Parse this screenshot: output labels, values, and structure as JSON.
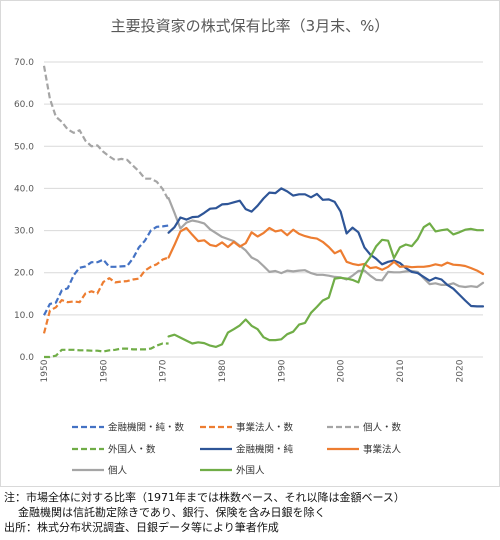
{
  "chart_data": {
    "type": "line",
    "title": "主要投資家の株式保有比率（3月末、%）",
    "xlim": [
      1950,
      2024
    ],
    "ylim": [
      0,
      70
    ],
    "yticks": [
      "0.0",
      "10.0",
      "20.0",
      "30.0",
      "40.0",
      "50.0",
      "60.0",
      "70.0"
    ],
    "xticks": [
      "1950",
      "1960",
      "1970",
      "1980",
      "1990",
      "2000",
      "2010",
      "2020"
    ],
    "grid": "horizontal",
    "legend_position": "bottom",
    "series": [
      {
        "name": "金融機関・純・数",
        "color": "#4472c4",
        "dash": true,
        "x": [
          1950,
          1951,
          1952,
          1953,
          1954,
          1955,
          1956,
          1957,
          1958,
          1959,
          1960,
          1961,
          1962,
          1963,
          1964,
          1965,
          1966,
          1967,
          1968,
          1969,
          1970,
          1971
        ],
        "y": [
          9.9,
          12.6,
          12.9,
          15.8,
          16.3,
          19.4,
          21.2,
          21.5,
          22.5,
          22.5,
          23.1,
          21.4,
          21.4,
          21.5,
          21.6,
          23.4,
          26.0,
          27.6,
          30.0,
          30.9,
          31.0,
          31.2
        ]
      },
      {
        "name": "事業法人・数",
        "color": "#ed7d31",
        "dash": true,
        "x": [
          1950,
          1951,
          1952,
          1953,
          1954,
          1955,
          1956,
          1957,
          1958,
          1959,
          1960,
          1961,
          1962,
          1963,
          1964,
          1965,
          1966,
          1967,
          1968,
          1969,
          1970,
          1971
        ],
        "y": [
          5.6,
          11.0,
          11.8,
          13.5,
          13.0,
          13.2,
          13.0,
          15.1,
          15.6,
          15.1,
          17.8,
          18.7,
          17.7,
          17.9,
          18.0,
          18.4,
          18.6,
          20.5,
          21.4,
          22.0,
          23.1,
          23.6
        ]
      },
      {
        "name": "個人・数",
        "color": "#a5a5a5",
        "dash": true,
        "x": [
          1950,
          1951,
          1952,
          1953,
          1954,
          1955,
          1956,
          1957,
          1958,
          1959,
          1960,
          1961,
          1962,
          1963,
          1964,
          1965,
          1966,
          1967,
          1968,
          1969,
          1970,
          1971
        ],
        "y": [
          69.1,
          61.3,
          57.0,
          55.8,
          54.0,
          53.2,
          53.8,
          51.3,
          50.0,
          50.2,
          48.7,
          47.6,
          46.7,
          47.0,
          46.8,
          45.4,
          44.1,
          42.3,
          42.3,
          41.6,
          39.9,
          37.2
        ]
      },
      {
        "name": "外国人・数",
        "color": "#70ad47",
        "dash": true,
        "x": [
          1950,
          1951,
          1952,
          1953,
          1954,
          1955,
          1956,
          1957,
          1958,
          1959,
          1960,
          1961,
          1962,
          1963,
          1964,
          1965,
          1966,
          1967,
          1968,
          1969,
          1970,
          1971
        ],
        "y": [
          0.0,
          0.0,
          0.3,
          1.7,
          1.7,
          1.7,
          1.6,
          1.6,
          1.5,
          1.5,
          1.3,
          1.6,
          1.7,
          2.0,
          2.0,
          1.8,
          1.8,
          1.8,
          2.0,
          2.7,
          3.2,
          3.2
        ]
      },
      {
        "name": "金融機関・純",
        "color": "#2e5597",
        "dash": false,
        "x": [
          1971,
          1972,
          1973,
          1974,
          1975,
          1976,
          1977,
          1978,
          1979,
          1980,
          1981,
          1982,
          1983,
          1984,
          1985,
          1986,
          1987,
          1988,
          1989,
          1990,
          1991,
          1992,
          1993,
          1994,
          1995,
          1996,
          1997,
          1998,
          1999,
          2000,
          2001,
          2002,
          2003,
          2004,
          2005,
          2006,
          2007,
          2008,
          2009,
          2010,
          2011,
          2012,
          2013,
          2014,
          2015,
          2016,
          2017,
          2018,
          2019,
          2020,
          2021,
          2022,
          2023,
          2024
        ],
        "y": [
          29.5,
          30.8,
          33.1,
          32.6,
          33.2,
          33.3,
          34.2,
          35.2,
          35.3,
          36.2,
          36.3,
          36.7,
          37.1,
          35.1,
          34.5,
          35.9,
          37.6,
          39.0,
          38.9,
          40.0,
          39.3,
          38.3,
          38.6,
          38.6,
          37.9,
          38.7,
          37.3,
          37.4,
          36.8,
          34.5,
          29.3,
          30.7,
          29.6,
          26.0,
          24.3,
          23.3,
          22.0,
          22.6,
          22.9,
          22.3,
          21.1,
          20.2,
          19.9,
          19.0,
          18.1,
          18.8,
          18.4,
          17.1,
          16.2,
          14.8,
          13.4,
          12.1,
          12.0,
          12.0
        ]
      },
      {
        "name": "事業法人",
        "color": "#ed7d31",
        "dash": false,
        "x": [
          1971,
          1972,
          1973,
          1974,
          1975,
          1976,
          1977,
          1978,
          1979,
          1980,
          1981,
          1982,
          1983,
          1984,
          1985,
          1986,
          1987,
          1988,
          1989,
          1990,
          1991,
          1992,
          1993,
          1994,
          1995,
          1996,
          1997,
          1998,
          1999,
          2000,
          2001,
          2002,
          2003,
          2004,
          2005,
          2006,
          2007,
          2008,
          2009,
          2010,
          2011,
          2012,
          2013,
          2014,
          2015,
          2016,
          2017,
          2018,
          2019,
          2020,
          2021,
          2022,
          2023,
          2024
        ],
        "y": [
          23.6,
          26.6,
          29.8,
          30.6,
          29.0,
          27.5,
          27.7,
          26.6,
          26.3,
          27.2,
          26.1,
          27.3,
          26.2,
          27.0,
          29.6,
          28.6,
          29.4,
          30.6,
          29.8,
          30.1,
          28.9,
          30.2,
          29.2,
          28.7,
          28.3,
          28.1,
          27.3,
          26.1,
          24.6,
          25.3,
          22.6,
          22.1,
          21.8,
          22.1,
          21.1,
          21.3,
          20.7,
          21.4,
          22.6,
          21.4,
          21.5,
          21.3,
          21.4,
          21.4,
          21.6,
          22.0,
          21.7,
          22.4,
          21.9,
          21.8,
          21.6,
          21.1,
          20.5,
          19.7
        ]
      },
      {
        "name": "個人",
        "color": "#a5a5a5",
        "dash": false,
        "x": [
          1971,
          1972,
          1973,
          1974,
          1975,
          1976,
          1977,
          1978,
          1979,
          1980,
          1981,
          1982,
          1983,
          1984,
          1985,
          1986,
          1987,
          1988,
          1989,
          1990,
          1991,
          1992,
          1993,
          1994,
          1995,
          1996,
          1997,
          1998,
          1999,
          2000,
          2001,
          2002,
          2003,
          2004,
          2005,
          2006,
          2007,
          2008,
          2009,
          2010,
          2011,
          2012,
          2013,
          2014,
          2015,
          2016,
          2017,
          2018,
          2019,
          2020,
          2021,
          2022,
          2023,
          2024
        ],
        "y": [
          37.7,
          34.2,
          30.5,
          31.9,
          32.4,
          32.1,
          31.7,
          30.3,
          29.4,
          28.5,
          28.0,
          27.5,
          26.4,
          25.3,
          23.6,
          22.9,
          21.6,
          20.2,
          20.4,
          19.9,
          20.5,
          20.3,
          20.5,
          20.6,
          19.9,
          19.5,
          19.5,
          19.3,
          19.0,
          18.9,
          18.4,
          19.3,
          20.4,
          20.5,
          19.3,
          18.3,
          18.2,
          20.2,
          20.1,
          20.1,
          20.3,
          20.4,
          20.2,
          18.7,
          17.3,
          17.5,
          17.1,
          17.1,
          17.5,
          16.8,
          16.6,
          16.8,
          16.6,
          17.6
        ]
      },
      {
        "name": "外国人",
        "color": "#70ad47",
        "dash": false,
        "x": [
          1971,
          1972,
          1973,
          1974,
          1975,
          1976,
          1977,
          1978,
          1979,
          1980,
          1981,
          1982,
          1983,
          1984,
          1985,
          1986,
          1987,
          1988,
          1989,
          1990,
          1991,
          1992,
          1993,
          1994,
          1995,
          1996,
          1997,
          1998,
          1999,
          2000,
          2001,
          2002,
          2003,
          2004,
          2005,
          2006,
          2007,
          2008,
          2009,
          2010,
          2011,
          2012,
          2013,
          2014,
          2015,
          2016,
          2017,
          2018,
          2019,
          2020,
          2021,
          2022,
          2023,
          2024
        ],
        "y": [
          4.9,
          5.3,
          4.6,
          3.9,
          3.2,
          3.5,
          3.3,
          2.7,
          2.4,
          3.0,
          5.8,
          6.6,
          7.5,
          8.9,
          7.4,
          6.6,
          4.7,
          4.0,
          4.0,
          4.2,
          5.4,
          6.0,
          7.7,
          8.1,
          10.5,
          11.9,
          13.4,
          14.1,
          18.6,
          18.8,
          18.6,
          18.3,
          17.7,
          21.8,
          23.7,
          26.3,
          27.8,
          27.6,
          23.5,
          26.0,
          26.7,
          26.3,
          28.0,
          30.8,
          31.7,
          29.8,
          30.1,
          30.3,
          29.1,
          29.6,
          30.2,
          30.4,
          30.1,
          30.1
        ]
      }
    ]
  },
  "notes": {
    "line1": "注：市場全体に対する比率（1971年までは株数ベース、それ以降は金額ベース）",
    "line2": "金融機関は信託勘定除きであり、銀行、保険を含み日銀を除く",
    "line3": "出所：株式分布状況調査、日銀データ等により筆者作成"
  }
}
